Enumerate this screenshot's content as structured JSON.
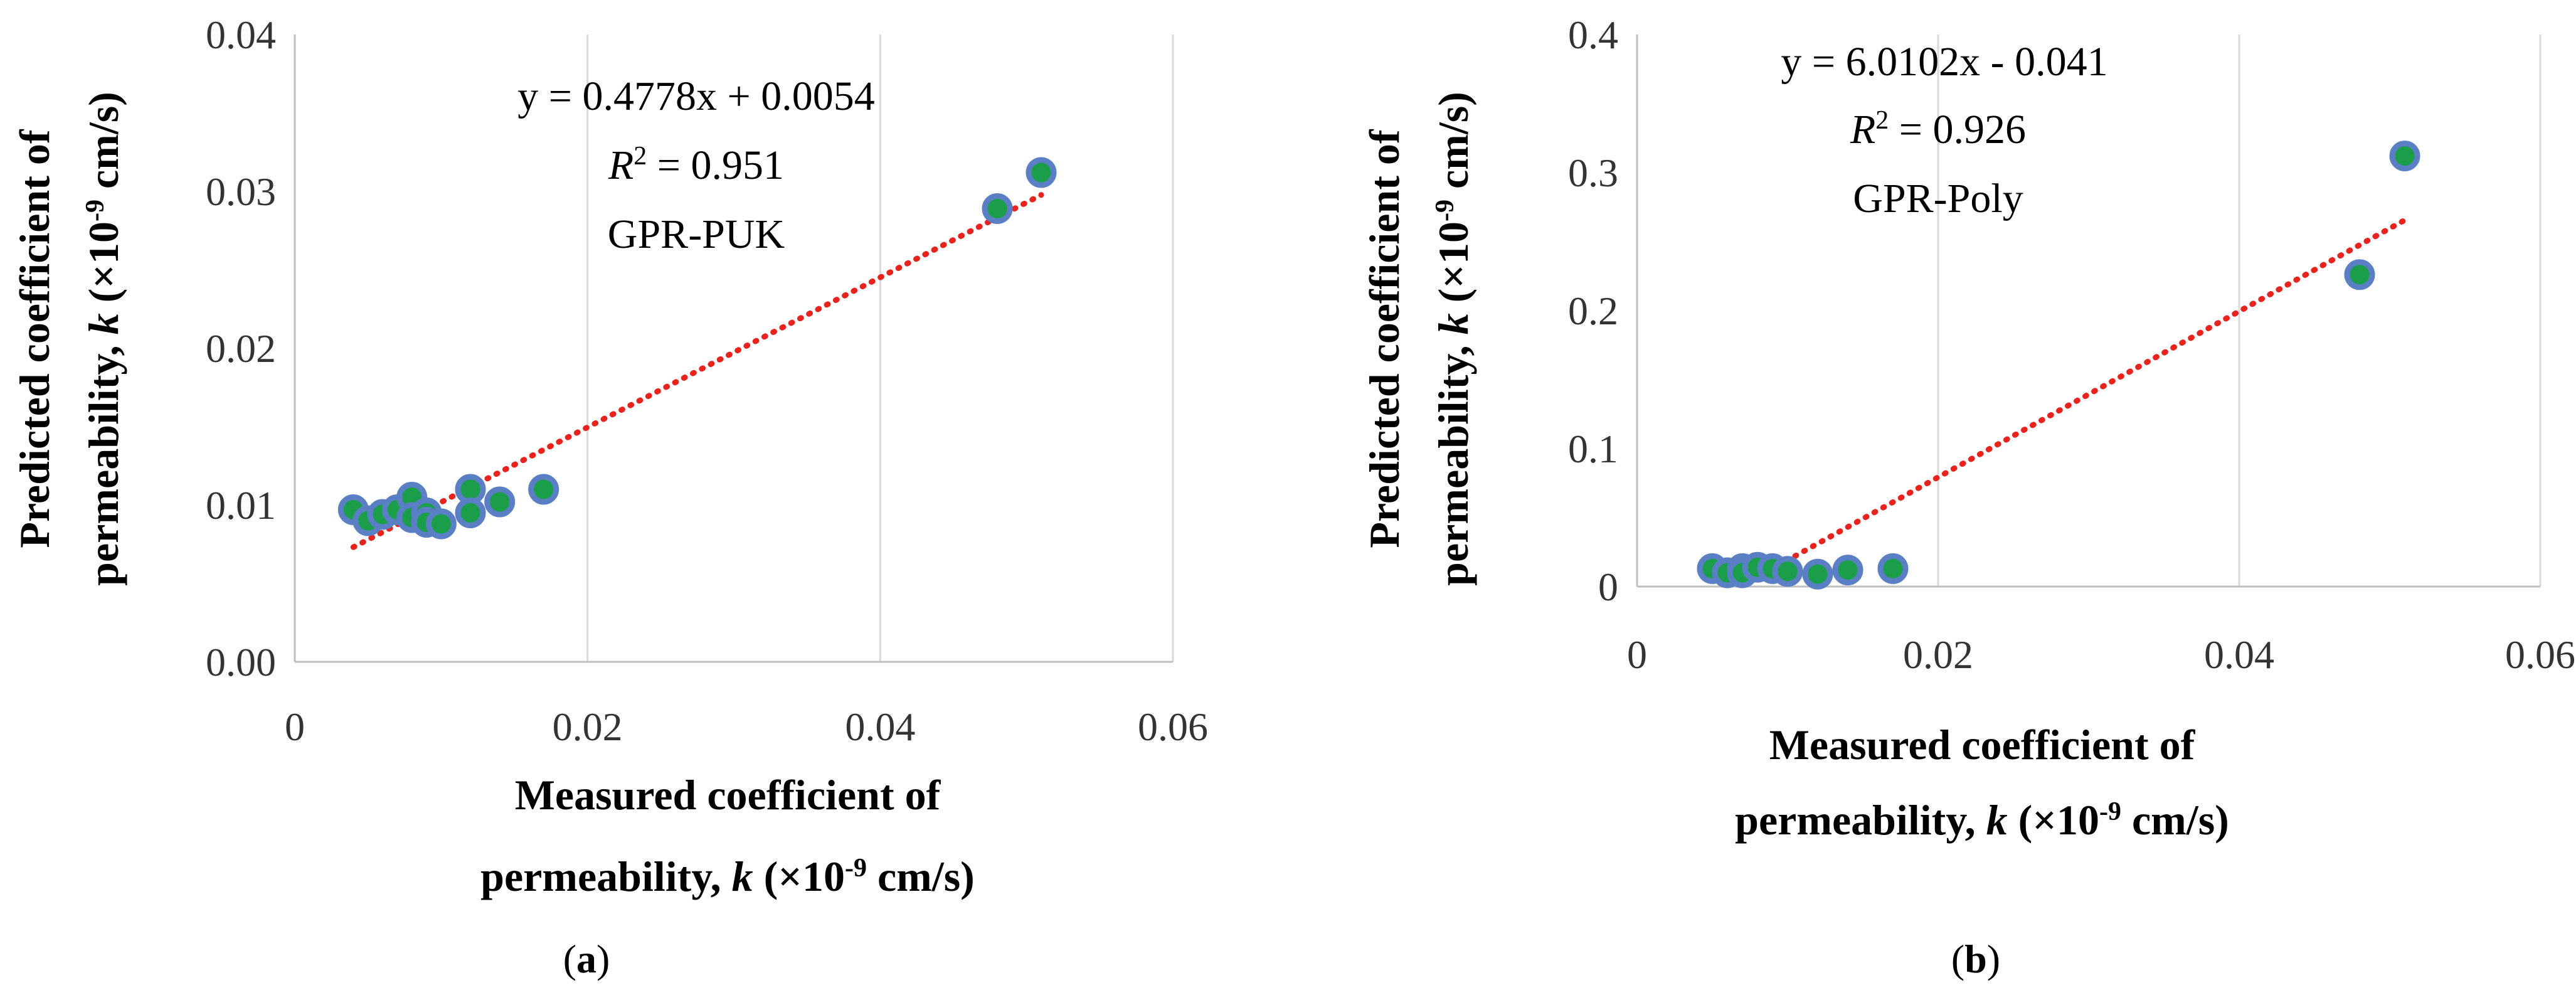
{
  "chart_data": [
    {
      "type": "scatter",
      "panel_label": {
        "open": "(",
        "letter": "a",
        "close": ")"
      },
      "xlim": [
        0,
        0.06
      ],
      "ylim": [
        0,
        0.04
      ],
      "x_ticks": [
        0,
        0.02,
        0.04,
        0.06
      ],
      "x_tick_labels": [
        "0",
        "0.02",
        "0.04",
        "0.06"
      ],
      "y_ticks": [
        0,
        0.01,
        0.02,
        0.03,
        0.04
      ],
      "y_tick_labels": [
        "0.00",
        "0.01",
        "0.02",
        "0.03",
        "0.04"
      ],
      "xlabel": {
        "line1": "Measured coefficient of",
        "line2_prefix": "permeability, ",
        "line2_k": "k",
        "line2_mid": " (×10",
        "line2_exp": "-9",
        "line2_suffix": " cm/s)"
      },
      "ylabel": {
        "line1": "Predicted coefficient of",
        "line2_prefix": "permeability, ",
        "line2_k": "k",
        "line2_mid": " (×10",
        "line2_exp": "-9",
        "line2_suffix": " cm/s)"
      },
      "annotation": {
        "equation": "y = 0.4778x + 0.0054",
        "r2_symbol": "R",
        "r2_exp": "2",
        "r2_value": " = 0.951",
        "model": "GPR-PUK"
      },
      "trendline": {
        "slope": 0.4778,
        "intercept": 0.0054,
        "x_range": [
          0.004,
          0.051
        ],
        "color": "#e8221d"
      },
      "x": [
        0.004,
        0.005,
        0.006,
        0.007,
        0.008,
        0.008,
        0.009,
        0.009,
        0.01,
        0.012,
        0.012,
        0.014,
        0.017,
        0.048,
        0.051
      ],
      "y": [
        0.0097,
        0.009,
        0.0094,
        0.0097,
        0.0105,
        0.0092,
        0.0095,
        0.0089,
        0.0088,
        0.011,
        0.0095,
        0.0102,
        0.011,
        0.0289,
        0.0312
      ],
      "marker_fill": "#1a9e4a",
      "marker_edge": "#5b7fc4"
    },
    {
      "type": "scatter",
      "panel_label": {
        "open": "(",
        "letter": "b",
        "close": ")"
      },
      "xlim": [
        0,
        0.06
      ],
      "ylim": [
        0,
        0.4
      ],
      "x_ticks": [
        0,
        0.02,
        0.04,
        0.06
      ],
      "x_tick_labels": [
        "0",
        "0.02",
        "0.04",
        "0.06"
      ],
      "y_ticks": [
        0,
        0.1,
        0.2,
        0.3,
        0.4
      ],
      "y_tick_labels": [
        "0",
        "0.1",
        "0.2",
        "0.3",
        "0.4"
      ],
      "xlabel": {
        "line1": "Measured coefficient of",
        "line2_prefix": "permeability, ",
        "line2_k": "k",
        "line2_mid": " (×10",
        "line2_exp": "-9",
        "line2_suffix": " cm/s)"
      },
      "ylabel": {
        "line1": "Predicted coefficient of",
        "line2_prefix": "permeability, ",
        "line2_k": "k",
        "line2_mid": " (×10",
        "line2_exp": "-9",
        "line2_suffix": " cm/s)"
      },
      "annotation": {
        "equation": "y = 6.0102x - 0.041",
        "r2_symbol": "R",
        "r2_exp": "2",
        "r2_value": " = 0.926",
        "model": "GPR-Poly"
      },
      "trendline": {
        "slope": 6.0102,
        "intercept": -0.041,
        "x_range": [
          0.007,
          0.051
        ],
        "color": "#e8221d"
      },
      "x": [
        0.005,
        0.006,
        0.007,
        0.007,
        0.008,
        0.009,
        0.01,
        0.012,
        0.014,
        0.017,
        0.048,
        0.051
      ],
      "y": [
        0.013,
        0.01,
        0.013,
        0.01,
        0.014,
        0.013,
        0.011,
        0.009,
        0.012,
        0.013,
        0.226,
        0.312
      ],
      "marker_fill": "#1a9e4a",
      "marker_edge": "#5b7fc4"
    }
  ]
}
